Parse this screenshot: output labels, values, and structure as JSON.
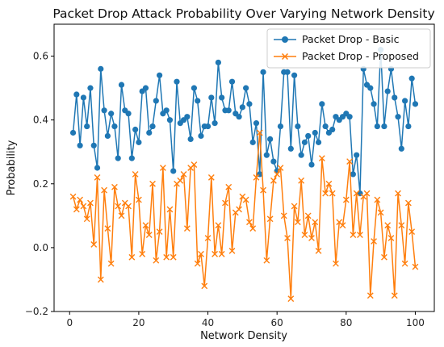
{
  "chart_data": {
    "type": "line",
    "title": "Packet Drop Attack Probability Over Varying Network Density",
    "xlabel": "Network Density",
    "ylabel": "Probability",
    "xlim": [
      -4.5,
      105.5
    ],
    "ylim": [
      -0.2,
      0.7
    ],
    "xticks": [
      0,
      20,
      40,
      60,
      80,
      100
    ],
    "yticks": [
      -0.2,
      0.0,
      0.2,
      0.4,
      0.6
    ],
    "xtick_labels": [
      "0",
      "20",
      "40",
      "60",
      "80",
      "100"
    ],
    "ytick_labels": [
      "−0.2",
      "0.0",
      "0.2",
      "0.4",
      "0.6"
    ],
    "grid": false,
    "legend_position": "top-right",
    "x": [
      1,
      2,
      3,
      4,
      5,
      6,
      7,
      8,
      9,
      10,
      11,
      12,
      13,
      14,
      15,
      16,
      17,
      18,
      19,
      20,
      21,
      22,
      23,
      24,
      25,
      26,
      27,
      28,
      29,
      30,
      31,
      32,
      33,
      34,
      35,
      36,
      37,
      38,
      39,
      40,
      41,
      42,
      43,
      44,
      45,
      46,
      47,
      48,
      49,
      50,
      51,
      52,
      53,
      54,
      55,
      56,
      57,
      58,
      59,
      60,
      61,
      62,
      63,
      64,
      65,
      66,
      67,
      68,
      69,
      70,
      71,
      72,
      73,
      74,
      75,
      76,
      77,
      78,
      79,
      80,
      81,
      82,
      83,
      84,
      85,
      86,
      87,
      88,
      89,
      90,
      91,
      92,
      93,
      94,
      95,
      96,
      97,
      98,
      99,
      100
    ],
    "series": [
      {
        "name": "Packet Drop - Basic",
        "color": "#1f77b4",
        "marker": "circle",
        "values": [
          0.36,
          0.48,
          0.32,
          0.47,
          0.38,
          0.5,
          0.32,
          0.25,
          0.56,
          0.43,
          0.35,
          0.42,
          0.38,
          0.28,
          0.51,
          0.43,
          0.42,
          0.28,
          0.37,
          0.33,
          0.49,
          0.5,
          0.36,
          0.38,
          0.46,
          0.54,
          0.42,
          0.43,
          0.4,
          0.24,
          0.52,
          0.39,
          0.4,
          0.41,
          0.34,
          0.5,
          0.46,
          0.35,
          0.38,
          0.38,
          0.47,
          0.39,
          0.58,
          0.47,
          0.43,
          0.43,
          0.52,
          0.42,
          0.41,
          0.44,
          0.5,
          0.45,
          0.33,
          0.39,
          0.23,
          0.55,
          0.29,
          0.34,
          0.27,
          0.24,
          0.38,
          0.55,
          0.55,
          0.31,
          0.54,
          0.38,
          0.29,
          0.33,
          0.35,
          0.26,
          0.36,
          0.33,
          0.45,
          0.38,
          0.36,
          0.37,
          0.41,
          0.4,
          0.41,
          0.42,
          0.41,
          0.23,
          0.29,
          0.17,
          0.56,
          0.51,
          0.5,
          0.45,
          0.38,
          0.62,
          0.38,
          0.49,
          0.56,
          0.47,
          0.41,
          0.31,
          0.46,
          0.38,
          0.53,
          0.45
        ]
      },
      {
        "name": "Packet Drop - Proposed",
        "color": "#ff7f0e",
        "marker": "x",
        "values": [
          0.16,
          0.12,
          0.15,
          0.13,
          0.09,
          0.14,
          0.01,
          0.22,
          -0.1,
          0.18,
          0.06,
          -0.05,
          0.19,
          0.13,
          0.1,
          0.14,
          0.13,
          -0.03,
          0.23,
          0.15,
          -0.02,
          0.07,
          0.04,
          0.2,
          -0.04,
          0.05,
          0.25,
          -0.03,
          0.12,
          -0.03,
          0.2,
          0.21,
          0.23,
          0.06,
          0.25,
          0.26,
          -0.05,
          -0.02,
          -0.12,
          0.03,
          0.22,
          -0.02,
          0.07,
          -0.02,
          0.14,
          0.19,
          -0.01,
          0.11,
          0.12,
          0.16,
          0.15,
          0.08,
          0.06,
          0.22,
          0.36,
          0.18,
          -0.04,
          0.09,
          0.21,
          0.23,
          0.25,
          0.1,
          0.03,
          -0.16,
          0.13,
          0.08,
          0.21,
          0.04,
          0.1,
          0.03,
          0.08,
          -0.01,
          0.28,
          0.17,
          0.2,
          0.17,
          -0.05,
          0.08,
          0.07,
          0.15,
          0.27,
          0.04,
          0.17,
          0.04,
          0.16,
          0.17,
          -0.15,
          0.02,
          0.15,
          0.11,
          -0.03,
          0.07,
          0.03,
          -0.15,
          0.17,
          0.07,
          -0.05,
          0.14,
          0.05,
          -0.06
        ]
      }
    ]
  }
}
